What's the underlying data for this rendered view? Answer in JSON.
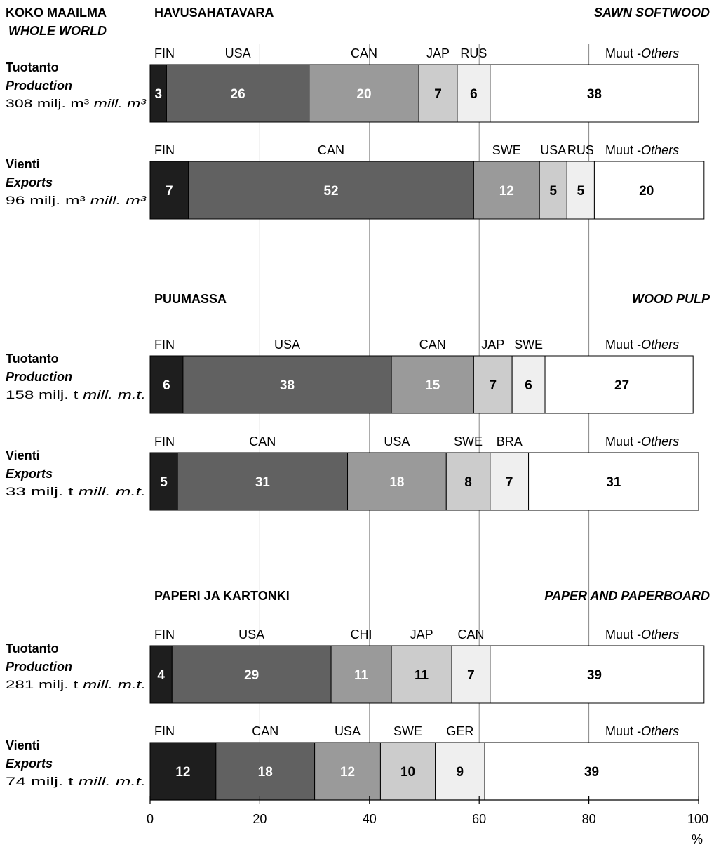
{
  "header": {
    "left_fi": "KOKO MAAILMA",
    "left_en": "WHOLE WORLD"
  },
  "colors": {
    "FIN": "#1e1e1e",
    "dark": "#616161",
    "mid": "#9a9a9a",
    "light": "#cccccc",
    "lighter": "#efefef",
    "others": "#ffffff",
    "border": "#000000",
    "grid": "#888888"
  },
  "chart_data": {
    "type": "bar",
    "orientation": "horizontal-stacked-100",
    "xlim": [
      0,
      100
    ],
    "xticks": [
      "0",
      "20",
      "40",
      "60",
      "80",
      "100"
    ],
    "xunit": "%",
    "grid": true,
    "sections": [
      {
        "title_fi": "HAVUSAHATAVARA",
        "title_en": "SAWN SOFTWOOD",
        "rows": [
          {
            "label_fi": "Tuotanto",
            "label_en": "Production",
            "quantity": "308 milj. m³",
            "quantity_en": "mill. m³",
            "segments": [
              {
                "name": "FIN",
                "value": 3
              },
              {
                "name": "USA",
                "value": 26
              },
              {
                "name": "CAN",
                "value": 20
              },
              {
                "name": "JAP",
                "value": 7
              },
              {
                "name": "RUS",
                "value": 6
              },
              {
                "name": "Muut",
                "name_en": "Others",
                "value": 38
              }
            ]
          },
          {
            "label_fi": "Vienti",
            "label_en": "Exports",
            "quantity": "96 milj. m³",
            "quantity_en": "mill. m³",
            "segments": [
              {
                "name": "FIN",
                "value": 7
              },
              {
                "name": "CAN",
                "value": 52
              },
              {
                "name": "SWE",
                "value": 12
              },
              {
                "name": "USA",
                "value": 5
              },
              {
                "name": "RUS",
                "value": 5
              },
              {
                "name": "Muut",
                "name_en": "Others",
                "value": 20
              }
            ]
          }
        ]
      },
      {
        "title_fi": "PUUMASSA",
        "title_en": "WOOD PULP",
        "rows": [
          {
            "label_fi": "Tuotanto",
            "label_en": "Production",
            "quantity": "158 milj. t",
            "quantity_en": "mill. m.t.",
            "segments": [
              {
                "name": "FIN",
                "value": 6
              },
              {
                "name": "USA",
                "value": 38
              },
              {
                "name": "CAN",
                "value": 15
              },
              {
                "name": "JAP",
                "value": 7
              },
              {
                "name": "SWE",
                "value": 6
              },
              {
                "name": "Muut",
                "name_en": "Others",
                "value": 27
              }
            ]
          },
          {
            "label_fi": "Vienti",
            "label_en": "Exports",
            "quantity": "33 milj. t",
            "quantity_en": "mill. m.t.",
            "segments": [
              {
                "name": "FIN",
                "value": 5
              },
              {
                "name": "CAN",
                "value": 31
              },
              {
                "name": "USA",
                "value": 18
              },
              {
                "name": "SWE",
                "value": 8
              },
              {
                "name": "BRA",
                "value": 7
              },
              {
                "name": "Muut",
                "name_en": "Others",
                "value": 31
              }
            ]
          }
        ]
      },
      {
        "title_fi": "PAPERI JA KARTONKI",
        "title_en": "PAPER AND PAPERBOARD",
        "rows": [
          {
            "label_fi": "Tuotanto",
            "label_en": "Production",
            "quantity": "281 milj. t",
            "quantity_en": "mill. m.t.",
            "segments": [
              {
                "name": "FIN",
                "value": 4
              },
              {
                "name": "USA",
                "value": 29
              },
              {
                "name": "CHI",
                "value": 11
              },
              {
                "name": "JAP",
                "value": 11
              },
              {
                "name": "CAN",
                "value": 7
              },
              {
                "name": "Muut",
                "name_en": "Others",
                "value": 39
              }
            ]
          },
          {
            "label_fi": "Vienti",
            "label_en": "Exports",
            "quantity": "74 milj. t",
            "quantity_en": "mill. m.t.",
            "segments": [
              {
                "name": "FIN",
                "value": 12
              },
              {
                "name": "CAN",
                "value": 18
              },
              {
                "name": "USA",
                "value": 12
              },
              {
                "name": "SWE",
                "value": 10
              },
              {
                "name": "GER",
                "value": 9
              },
              {
                "name": "Muut",
                "name_en": "Others",
                "value": 39
              }
            ]
          }
        ]
      }
    ]
  }
}
